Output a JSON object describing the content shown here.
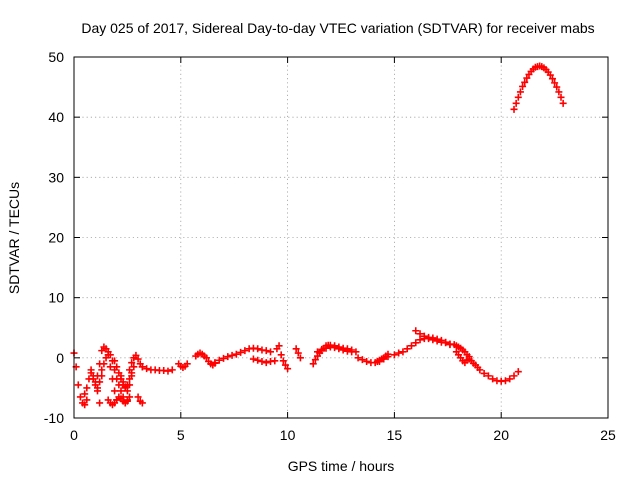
{
  "chart_data": {
    "type": "scatter",
    "title": "Day 025 of 2017, Sidereal Day-to-day VTEC variation (SDTVAR) for receiver mabs",
    "xlabel": "GPS time / hours",
    "ylabel": "SDTVAR / TECUs",
    "xlim": [
      0,
      25
    ],
    "ylim": [
      -10,
      50
    ],
    "xticks": [
      0,
      5,
      10,
      15,
      20,
      25
    ],
    "yticks": [
      -10,
      0,
      10,
      20,
      30,
      40,
      50
    ],
    "grid": true,
    "marker": "+",
    "color": "#ff0000",
    "series": [
      {
        "name": "SDTVAR",
        "segments": [
          {
            "x": [
              0.0,
              0.1,
              0.2,
              0.3,
              0.4,
              0.5,
              0.6
            ],
            "y": [
              0.8,
              -1.5,
              -4.5,
              -6.5,
              -7.5,
              -7.8,
              -7.0
            ]
          },
          {
            "x": [
              0.5,
              0.6,
              0.7,
              0.8,
              0.9,
              1.0,
              1.1,
              1.2
            ],
            "y": [
              -6.0,
              -5.0,
              -3.5,
              -2.5,
              -3.0,
              -4.0,
              -5.5,
              -7.5
            ]
          },
          {
            "x": [
              0.8,
              0.9,
              1.0,
              1.1,
              1.2,
              1.3
            ],
            "y": [
              -2.0,
              -3.5,
              -4.5,
              -5.0,
              -4.0,
              -3.0
            ]
          },
          {
            "x": [
              1.1,
              1.2,
              1.3,
              1.4,
              1.5,
              1.6,
              1.7,
              1.8,
              1.9,
              2.0
            ],
            "y": [
              -3.0,
              -1.0,
              1.2,
              1.8,
              1.5,
              0.5,
              -1.5,
              -3.5,
              -5.5,
              -7.0
            ]
          },
          {
            "x": [
              1.3,
              1.4,
              1.5,
              1.6,
              1.7,
              1.8,
              1.9,
              2.0,
              2.1,
              2.2,
              2.3,
              2.4,
              2.5
            ],
            "y": [
              -2.0,
              -1.0,
              0.0,
              1.0,
              0.5,
              -0.5,
              -2.0,
              -3.5,
              -4.5,
              -5.5,
              -6.5,
              -7.5,
              -7.2
            ]
          },
          {
            "x": [
              1.6,
              1.7,
              1.8,
              1.9,
              2.0,
              2.1,
              2.2,
              2.3,
              2.4,
              2.5,
              2.6
            ],
            "y": [
              -7.0,
              -7.5,
              -7.8,
              -7.5,
              -7.0,
              -6.5,
              -6.8,
              -7.2,
              -7.5,
              -7.0,
              -6.5
            ]
          },
          {
            "x": [
              1.9,
              2.0,
              2.1,
              2.2,
              2.3,
              2.4,
              2.5,
              2.6,
              2.7,
              2.8
            ],
            "y": [
              -0.5,
              -1.5,
              -2.5,
              -3.5,
              -4.5,
              -5.0,
              -4.5,
              -3.5,
              -2.5,
              -1.5
            ]
          },
          {
            "x": [
              2.2,
              2.3,
              2.4,
              2.5,
              2.6,
              2.7
            ],
            "y": [
              -3.0,
              -4.0,
              -4.8,
              -5.5,
              -4.5,
              -3.0
            ]
          },
          {
            "x": [
              2.6,
              2.7,
              2.8,
              2.9,
              3.0,
              3.1,
              3.2
            ],
            "y": [
              -2.0,
              -0.8,
              0.0,
              0.4,
              -0.2,
              -1.0,
              -1.5
            ]
          },
          {
            "x": [
              3.0,
              3.1,
              3.2
            ],
            "y": [
              -6.5,
              -7.2,
              -7.5
            ]
          },
          {
            "x": [
              3.2,
              3.4,
              3.6,
              3.8,
              4.0,
              4.2,
              4.4,
              4.6
            ],
            "y": [
              -1.5,
              -1.8,
              -2.0,
              -2.0,
              -2.1,
              -2.1,
              -2.2,
              -2.0
            ]
          },
          {
            "x": [
              4.9,
              5.0,
              5.1,
              5.2,
              5.3
            ],
            "y": [
              -1.0,
              -1.4,
              -1.6,
              -1.4,
              -1.0
            ]
          },
          {
            "x": [
              5.7,
              5.8,
              5.9,
              6.0,
              6.1,
              6.2,
              6.3,
              6.4,
              6.5,
              6.6
            ],
            "y": [
              0.3,
              0.6,
              0.8,
              0.6,
              0.3,
              0.0,
              -0.6,
              -1.0,
              -1.2,
              -0.9
            ]
          },
          {
            "x": [
              6.6,
              6.8,
              7.0,
              7.2,
              7.4,
              7.6,
              7.8,
              8.0,
              8.2,
              8.4,
              8.6,
              8.8,
              9.0,
              9.2
            ],
            "y": [
              -0.8,
              -0.4,
              -0.1,
              0.2,
              0.4,
              0.6,
              0.9,
              1.2,
              1.5,
              1.6,
              1.5,
              1.3,
              1.2,
              1.0
            ]
          },
          {
            "x": [
              8.4,
              8.6,
              8.8,
              9.0,
              9.2,
              9.4
            ],
            "y": [
              -0.2,
              -0.4,
              -0.6,
              -0.8,
              -0.6,
              -0.5
            ]
          },
          {
            "x": [
              9.5,
              9.6,
              9.7,
              9.8,
              9.9,
              10.0
            ],
            "y": [
              1.5,
              2.0,
              0.5,
              -0.5,
              -1.2,
              -1.8
            ]
          },
          {
            "x": [
              10.4,
              10.5,
              10.6
            ],
            "y": [
              1.5,
              0.8,
              0.0
            ]
          },
          {
            "x": [
              11.2,
              11.3,
              11.4,
              11.5,
              11.6,
              11.7,
              11.8,
              11.9,
              12.0,
              12.2,
              12.4,
              12.6,
              12.8,
              13.0,
              13.2
            ],
            "y": [
              -1.0,
              -0.3,
              0.3,
              0.8,
              1.2,
              1.6,
              2.0,
              2.1,
              2.1,
              2.0,
              1.8,
              1.6,
              1.5,
              1.3,
              1.0
            ]
          },
          {
            "x": [
              11.4,
              11.6,
              11.8,
              12.0,
              12.2,
              12.4,
              12.6,
              12.8,
              13.0
            ],
            "y": [
              1.0,
              1.4,
              1.6,
              1.8,
              1.7,
              1.5,
              1.3,
              1.1,
              1.0
            ]
          },
          {
            "x": [
              13.3,
              13.5,
              13.7,
              13.9,
              14.1,
              14.3,
              14.5,
              14.7
            ],
            "y": [
              0.0,
              -0.3,
              -0.6,
              -0.8,
              -0.8,
              -0.6,
              -0.2,
              0.2
            ]
          },
          {
            "x": [
              14.2,
              14.3,
              14.4,
              14.5,
              14.6,
              14.7
            ],
            "y": [
              -0.6,
              -0.4,
              -0.2,
              0.0,
              0.3,
              0.6
            ]
          },
          {
            "x": [
              15.0,
              15.2,
              15.4,
              15.6,
              15.8,
              16.0,
              16.2,
              16.4,
              16.6,
              16.8,
              17.0,
              17.2,
              17.4,
              17.6
            ],
            "y": [
              0.5,
              0.8,
              1.0,
              1.5,
              2.0,
              2.5,
              3.0,
              3.2,
              3.4,
              3.3,
              3.1,
              2.9,
              2.6,
              2.2
            ]
          },
          {
            "x": [
              16.0,
              16.2,
              16.4,
              16.6,
              16.8,
              17.0,
              17.2,
              17.4,
              17.6
            ],
            "y": [
              4.5,
              4.0,
              3.6,
              3.2,
              3.0,
              2.8,
              2.6,
              2.5,
              2.3
            ]
          },
          {
            "x": [
              17.8,
              17.9,
              18.0,
              18.1,
              18.2,
              18.3,
              18.4,
              18.5
            ],
            "y": [
              2.2,
              2.0,
              1.8,
              1.6,
              1.3,
              1.0,
              0.5,
              0.2
            ]
          },
          {
            "x": [
              17.9,
              18.0,
              18.1,
              18.2,
              18.3,
              18.4,
              18.5,
              18.6,
              18.7,
              18.8,
              18.9,
              19.0,
              19.2,
              19.4,
              19.6,
              19.8,
              20.0,
              20.2,
              20.4,
              20.6,
              20.8
            ],
            "y": [
              1.0,
              0.5,
              0.0,
              -0.5,
              -0.8,
              -0.4,
              -0.2,
              -0.5,
              -0.9,
              -1.2,
              -1.6,
              -2.0,
              -2.6,
              -3.0,
              -3.5,
              -3.8,
              -3.9,
              -3.8,
              -3.5,
              -3.0,
              -2.3
            ]
          },
          {
            "x": [
              20.6,
              20.7,
              20.8,
              20.9,
              21.0,
              21.1,
              21.2,
              21.3,
              21.4,
              21.5,
              21.6,
              21.7,
              21.8,
              21.9,
              22.0,
              22.1,
              22.2,
              22.3,
              22.4,
              22.5,
              22.6,
              22.7,
              22.8,
              22.9
            ],
            "y": [
              41.3,
              42.3,
              43.3,
              44.2,
              45.1,
              45.8,
              46.5,
              47.1,
              47.6,
              48.0,
              48.3,
              48.4,
              48.5,
              48.4,
              48.2,
              47.9,
              47.5,
              47.0,
              46.4,
              45.7,
              45.0,
              44.2,
              43.3,
              42.3
            ]
          }
        ]
      }
    ]
  }
}
